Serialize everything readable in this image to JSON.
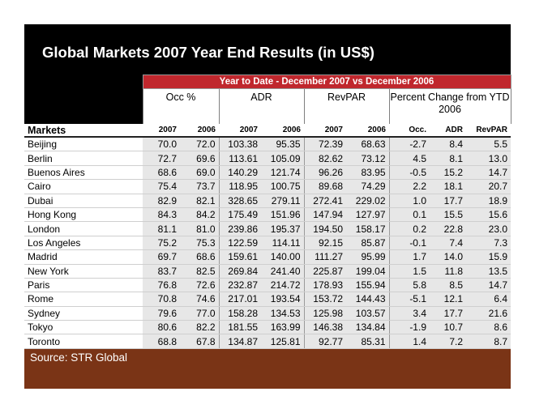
{
  "title": "Global Markets 2007 Year End Results (in US$)",
  "source": "Source: STR Global",
  "banner": "Year to Date - December 2007 vs December 2006",
  "groups": [
    "Occ %",
    "ADR",
    "RevPAR",
    "Percent Change from YTD 2006"
  ],
  "markets_header": "Markets",
  "subheaders": [
    "2007",
    "2006",
    "2007",
    "2006",
    "2007",
    "2006",
    "Occ.",
    "ADR",
    "RevPAR"
  ],
  "rows": [
    {
      "market": "Beijing",
      "values": [
        "70.0",
        "72.0",
        "103.38",
        "95.35",
        "72.39",
        "68.63",
        "-2.7",
        "8.4",
        "5.5"
      ]
    },
    {
      "market": "Berlin",
      "values": [
        "72.7",
        "69.6",
        "113.61",
        "105.09",
        "82.62",
        "73.12",
        "4.5",
        "8.1",
        "13.0"
      ]
    },
    {
      "market": "Buenos Aires",
      "values": [
        "68.6",
        "69.0",
        "140.29",
        "121.74",
        "96.26",
        "83.95",
        "-0.5",
        "15.2",
        "14.7"
      ]
    },
    {
      "market": "Cairo",
      "values": [
        "75.4",
        "73.7",
        "118.95",
        "100.75",
        "89.68",
        "74.29",
        "2.2",
        "18.1",
        "20.7"
      ]
    },
    {
      "market": "Dubai",
      "values": [
        "82.9",
        "82.1",
        "328.65",
        "279.11",
        "272.41",
        "229.02",
        "1.0",
        "17.7",
        "18.9"
      ]
    },
    {
      "market": "Hong Kong",
      "values": [
        "84.3",
        "84.2",
        "175.49",
        "151.96",
        "147.94",
        "127.97",
        "0.1",
        "15.5",
        "15.6"
      ]
    },
    {
      "market": "London",
      "values": [
        "81.1",
        "81.0",
        "239.86",
        "195.37",
        "194.50",
        "158.17",
        "0.2",
        "22.8",
        "23.0"
      ]
    },
    {
      "market": "Los Angeles",
      "values": [
        "75.2",
        "75.3",
        "122.59",
        "114.11",
        "92.15",
        "85.87",
        "-0.1",
        "7.4",
        "7.3"
      ]
    },
    {
      "market": "Madrid",
      "values": [
        "69.7",
        "68.6",
        "159.61",
        "140.00",
        "111.27",
        "95.99",
        "1.7",
        "14.0",
        "15.9"
      ]
    },
    {
      "market": "New York",
      "values": [
        "83.7",
        "82.5",
        "269.84",
        "241.40",
        "225.87",
        "199.04",
        "1.5",
        "11.8",
        "13.5"
      ]
    },
    {
      "market": "Paris",
      "values": [
        "76.8",
        "72.6",
        "232.87",
        "214.72",
        "178.93",
        "155.94",
        "5.8",
        "8.5",
        "14.7"
      ]
    },
    {
      "market": "Rome",
      "values": [
        "70.8",
        "74.6",
        "217.01",
        "193.54",
        "153.72",
        "144.43",
        "-5.1",
        "12.1",
        "6.4"
      ]
    },
    {
      "market": "Sydney",
      "values": [
        "79.6",
        "77.0",
        "158.28",
        "134.53",
        "125.98",
        "103.57",
        "3.4",
        "17.7",
        "21.6"
      ]
    },
    {
      "market": "Tokyo",
      "values": [
        "80.6",
        "82.2",
        "181.55",
        "163.99",
        "146.38",
        "134.84",
        "-1.9",
        "10.7",
        "8.6"
      ]
    },
    {
      "market": "Toronto",
      "values": [
        "68.8",
        "67.8",
        "134.87",
        "125.81",
        "92.77",
        "85.31",
        "1.4",
        "7.2",
        "8.7"
      ]
    }
  ],
  "colors": {
    "title_bg": "#000000",
    "banner": "#c0272d",
    "footer_bg": "#7a3416",
    "cell_bg": "#e7e7e7"
  }
}
